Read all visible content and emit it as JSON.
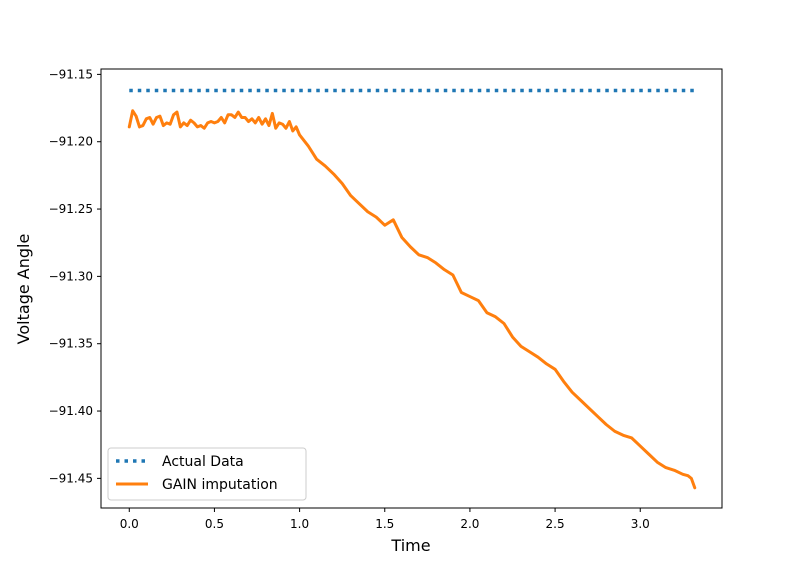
{
  "chart_data": {
    "type": "line",
    "title": "",
    "xlabel": "Time",
    "ylabel": "Voltage Angle",
    "xlim": [
      -0.166,
      3.48
    ],
    "ylim": [
      -91.472,
      -91.146
    ],
    "xticks": [
      0.0,
      0.5,
      1.0,
      1.5,
      2.0,
      2.5,
      3.0
    ],
    "xtick_labels": [
      "0.0",
      "0.5",
      "1.0",
      "1.5",
      "2.0",
      "2.5",
      "3.0"
    ],
    "yticks": [
      -91.15,
      -91.2,
      -91.25,
      -91.3,
      -91.35,
      -91.4,
      -91.45
    ],
    "ytick_labels": [
      "−91.15",
      "−91.20",
      "−91.25",
      "−91.30",
      "−91.35",
      "−91.40",
      "−91.45"
    ],
    "grid": false,
    "legend_position": "lower-left",
    "series": [
      {
        "name": "Actual Data",
        "style": "dotted",
        "color": "#1f77b4",
        "x": [
          0.0,
          3.32
        ],
        "y": [
          -91.162,
          -91.162
        ]
      },
      {
        "name": "GAIN imputation",
        "style": "solid",
        "color": "#ff7f0e",
        "x": [
          0.0,
          0.02,
          0.04,
          0.06,
          0.08,
          0.1,
          0.12,
          0.14,
          0.16,
          0.18,
          0.2,
          0.22,
          0.24,
          0.26,
          0.28,
          0.3,
          0.32,
          0.34,
          0.36,
          0.38,
          0.4,
          0.42,
          0.44,
          0.46,
          0.48,
          0.5,
          0.52,
          0.54,
          0.56,
          0.58,
          0.6,
          0.62,
          0.64,
          0.66,
          0.68,
          0.7,
          0.72,
          0.74,
          0.76,
          0.78,
          0.8,
          0.82,
          0.84,
          0.86,
          0.88,
          0.9,
          0.92,
          0.94,
          0.96,
          0.98,
          1.0,
          1.05,
          1.1,
          1.15,
          1.2,
          1.25,
          1.3,
          1.35,
          1.4,
          1.45,
          1.5,
          1.55,
          1.6,
          1.65,
          1.7,
          1.75,
          1.8,
          1.85,
          1.9,
          1.95,
          2.0,
          2.05,
          2.1,
          2.15,
          2.2,
          2.25,
          2.3,
          2.35,
          2.4,
          2.45,
          2.5,
          2.55,
          2.6,
          2.65,
          2.7,
          2.75,
          2.8,
          2.85,
          2.9,
          2.95,
          3.0,
          3.05,
          3.1,
          3.15,
          3.2,
          3.25,
          3.28,
          3.3,
          3.32
        ],
        "y": [
          -91.189,
          -91.177,
          -91.181,
          -91.189,
          -91.188,
          -91.183,
          -91.182,
          -91.187,
          -91.182,
          -91.181,
          -91.188,
          -91.186,
          -91.187,
          -91.18,
          -91.178,
          -91.189,
          -91.186,
          -91.188,
          -91.184,
          -91.186,
          -91.189,
          -91.188,
          -91.19,
          -91.186,
          -91.185,
          -91.186,
          -91.185,
          -91.182,
          -91.186,
          -91.18,
          -91.18,
          -91.182,
          -91.178,
          -91.182,
          -91.182,
          -91.185,
          -91.183,
          -91.186,
          -91.182,
          -91.187,
          -91.183,
          -91.188,
          -91.179,
          -91.19,
          -91.186,
          -91.187,
          -91.19,
          -91.185,
          -91.192,
          -91.189,
          -91.195,
          -91.203,
          -91.213,
          -91.218,
          -91.224,
          -91.231,
          -91.24,
          -91.246,
          -91.252,
          -91.256,
          -91.262,
          -91.258,
          -91.271,
          -91.278,
          -91.284,
          -91.286,
          -91.29,
          -91.295,
          -91.299,
          -91.312,
          -91.315,
          -91.318,
          -91.327,
          -91.33,
          -91.335,
          -91.345,
          -91.352,
          -91.356,
          -91.36,
          -91.365,
          -91.369,
          -91.378,
          -91.386,
          -91.392,
          -91.398,
          -91.404,
          -91.41,
          -91.415,
          -91.418,
          -91.42,
          -91.426,
          -91.432,
          -91.438,
          -91.442,
          -91.444,
          -91.447,
          -91.448,
          -91.45,
          -91.457
        ]
      }
    ]
  }
}
